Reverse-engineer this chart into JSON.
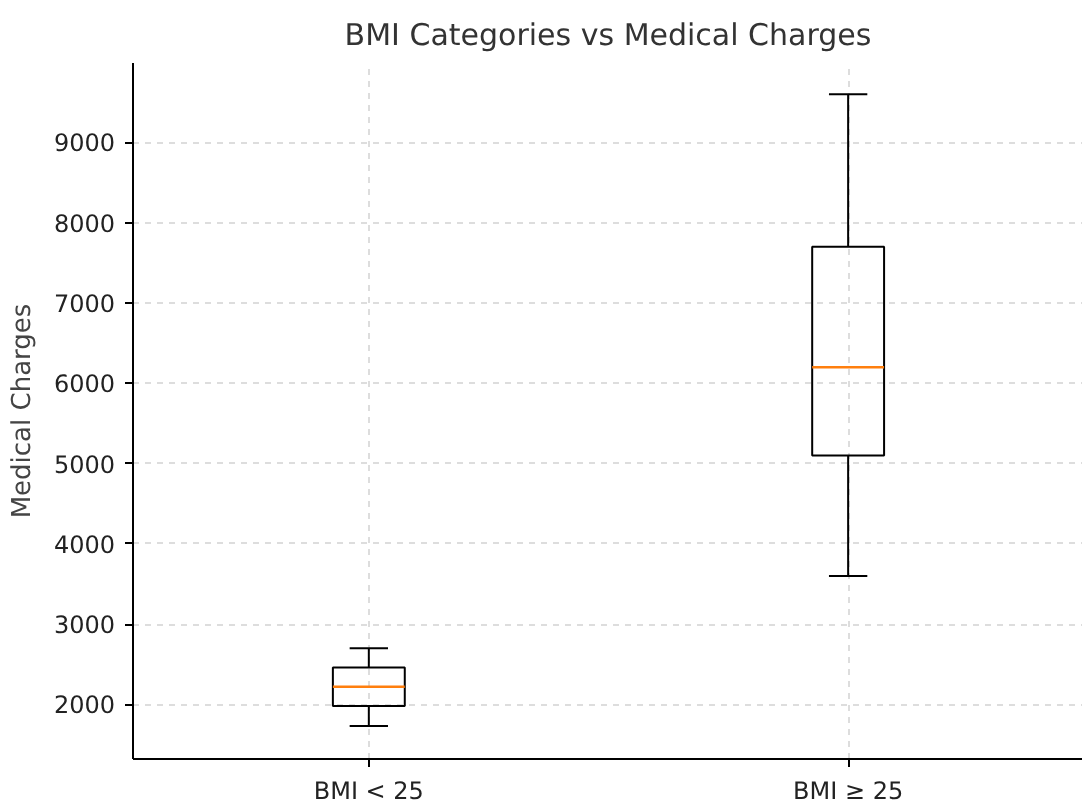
{
  "chart_data": {
    "type": "box",
    "title": "BMI Categories vs Medical Charges",
    "ylabel": "Medical Charges",
    "categories": [
      "BMI < 25",
      "BMI ≥ 25"
    ],
    "boxes": [
      {
        "low": 1730,
        "q1": 1980,
        "median": 2220,
        "q3": 2460,
        "high": 2700
      },
      {
        "low": 3600,
        "q1": 5100,
        "median": 6200,
        "q3": 7700,
        "high": 9600
      }
    ],
    "ylim": [
      1320,
      9990
    ],
    "yticks": [
      2000,
      3000,
      4000,
      5000,
      6000,
      7000,
      8000,
      9000
    ],
    "grid": true
  }
}
